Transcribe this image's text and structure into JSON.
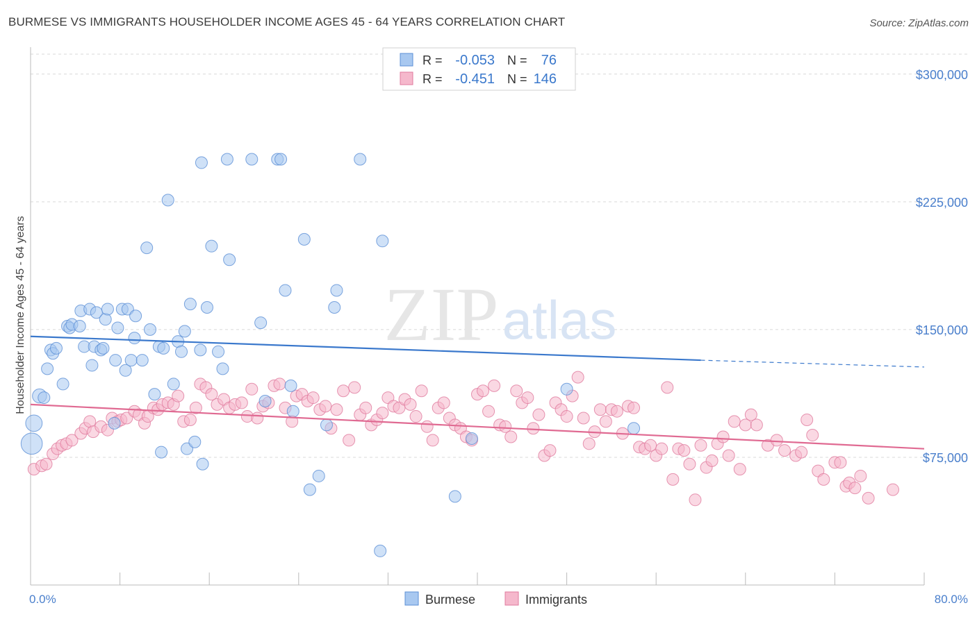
{
  "title": "BURMESE VS IMMIGRANTS HOUSEHOLDER INCOME AGES 45 - 64 YEARS CORRELATION CHART",
  "source": "Source: ZipAtlas.com",
  "watermark": {
    "zip": "ZIP",
    "atlas": "atlas"
  },
  "colors": {
    "burmese_fill": "#a8c8f0",
    "burmese_stroke": "#5b8fd6",
    "burmese_line": "#3a78cc",
    "immigrants_fill": "#f5b8cc",
    "immigrants_stroke": "#e07a9e",
    "immigrants_line": "#e06a92",
    "axis_label": "#4a7fcc",
    "grid": "#d9d9d9"
  },
  "legend_top": [
    {
      "r_label": "R =",
      "r_value": "-0.053",
      "n_label": "N =",
      "n_value": "76"
    },
    {
      "r_label": "R =",
      "r_value": "-0.451",
      "n_label": "N =",
      "n_value": "146"
    }
  ],
  "legend_bottom": [
    "Burmese",
    "Immigrants"
  ],
  "chart_data": {
    "type": "scatter",
    "xlabel": "",
    "ylabel": "Householder Income Ages 45 - 64 years",
    "xlim": [
      0,
      80
    ],
    "ylim": [
      0,
      315000
    ],
    "x_tick_labels": [
      "0.0%",
      "80.0%"
    ],
    "y_ticks": [
      75000,
      150000,
      225000,
      300000
    ],
    "y_tick_labels": [
      "$75,000",
      "$150,000",
      "$225,000",
      "$300,000"
    ],
    "grid": true,
    "series": [
      {
        "name": "Burmese",
        "trend": {
          "x": [
            0,
            60
          ],
          "y": [
            146000,
            132000
          ],
          "dashed_to": [
            80,
            128000
          ]
        },
        "points": [
          [
            0.1,
            83000,
            18
          ],
          [
            0.3,
            95000,
            14
          ],
          [
            0.8,
            111000,
            12
          ],
          [
            1.2,
            110000,
            10
          ],
          [
            1.5,
            127000,
            10
          ],
          [
            1.8,
            138000,
            10
          ],
          [
            2.0,
            136000,
            10
          ],
          [
            2.3,
            139000,
            10
          ],
          [
            2.9,
            118000,
            10
          ],
          [
            3.3,
            152000,
            10
          ],
          [
            3.5,
            151000,
            10
          ],
          [
            3.7,
            153000,
            10
          ],
          [
            4.4,
            152000,
            10
          ],
          [
            4.5,
            161000,
            10
          ],
          [
            4.8,
            140000,
            10
          ],
          [
            5.3,
            162000,
            10
          ],
          [
            5.5,
            129000,
            10
          ],
          [
            5.7,
            140000,
            10
          ],
          [
            5.9,
            160000,
            10
          ],
          [
            6.3,
            138000,
            10
          ],
          [
            6.5,
            139000,
            10
          ],
          [
            6.7,
            156000,
            10
          ],
          [
            6.9,
            162000,
            10
          ],
          [
            7.5,
            95000,
            10
          ],
          [
            7.6,
            132000,
            10
          ],
          [
            7.8,
            151000,
            10
          ],
          [
            8.2,
            162000,
            10
          ],
          [
            8.5,
            126000,
            10
          ],
          [
            8.7,
            162000,
            10
          ],
          [
            9.0,
            132000,
            10
          ],
          [
            9.3,
            145000,
            10
          ],
          [
            9.4,
            158000,
            10
          ],
          [
            10.0,
            132000,
            10
          ],
          [
            10.4,
            198000,
            10
          ],
          [
            10.7,
            150000,
            10
          ],
          [
            11.1,
            112000,
            10
          ],
          [
            11.5,
            140000,
            10
          ],
          [
            11.7,
            78000,
            10
          ],
          [
            11.9,
            139000,
            10
          ],
          [
            12.3,
            226000,
            10
          ],
          [
            12.8,
            118000,
            10
          ],
          [
            13.2,
            143000,
            10
          ],
          [
            13.5,
            137000,
            10
          ],
          [
            13.8,
            149000,
            10
          ],
          [
            14.0,
            80000,
            10
          ],
          [
            14.3,
            165000,
            10
          ],
          [
            14.7,
            84000,
            10
          ],
          [
            15.2,
            138000,
            10
          ],
          [
            15.3,
            248000,
            10
          ],
          [
            15.4,
            71000,
            10
          ],
          [
            15.8,
            163000,
            10
          ],
          [
            16.2,
            199000,
            10
          ],
          [
            16.8,
            137000,
            10
          ],
          [
            17.2,
            127000,
            10
          ],
          [
            17.6,
            250000,
            10
          ],
          [
            17.8,
            191000,
            10
          ],
          [
            19.8,
            250000,
            10
          ],
          [
            20.6,
            154000,
            10
          ],
          [
            21.0,
            108000,
            10
          ],
          [
            22.1,
            250000,
            10
          ],
          [
            22.4,
            250000,
            10
          ],
          [
            22.8,
            173000,
            10
          ],
          [
            23.3,
            117000,
            10
          ],
          [
            23.5,
            102000,
            10
          ],
          [
            24.5,
            203000,
            10
          ],
          [
            25.0,
            56000,
            10
          ],
          [
            25.8,
            64000,
            10
          ],
          [
            26.5,
            94000,
            10
          ],
          [
            27.2,
            163000,
            10
          ],
          [
            27.4,
            173000,
            10
          ],
          [
            29.5,
            250000,
            10
          ],
          [
            31.5,
            202000,
            10
          ],
          [
            31.3,
            20000,
            10
          ],
          [
            38.0,
            52000,
            10
          ],
          [
            39.5,
            86000,
            10
          ],
          [
            48.0,
            115000,
            10
          ],
          [
            54.0,
            92000,
            10
          ]
        ]
      },
      {
        "name": "Immigrants",
        "trend": {
          "x": [
            0,
            80
          ],
          "y": [
            106000,
            80000
          ]
        },
        "points": [
          [
            0.3,
            68000,
            10
          ],
          [
            1.0,
            70000,
            10
          ],
          [
            1.4,
            71000,
            10
          ],
          [
            2.0,
            77000,
            10
          ],
          [
            2.4,
            80000,
            10
          ],
          [
            2.8,
            82000,
            10
          ],
          [
            3.2,
            83000,
            10
          ],
          [
            3.7,
            85000,
            10
          ],
          [
            4.5,
            89000,
            10
          ],
          [
            4.9,
            92000,
            10
          ],
          [
            5.3,
            96000,
            10
          ],
          [
            5.6,
            90000,
            10
          ],
          [
            6.3,
            93000,
            10
          ],
          [
            6.9,
            91000,
            10
          ],
          [
            7.3,
            98000,
            10
          ],
          [
            7.8,
            96000,
            10
          ],
          [
            8.1,
            97000,
            10
          ],
          [
            8.6,
            98000,
            10
          ],
          [
            9.3,
            102000,
            10
          ],
          [
            9.7,
            100000,
            10
          ],
          [
            10.2,
            95000,
            10
          ],
          [
            10.5,
            99000,
            10
          ],
          [
            11.0,
            104000,
            10
          ],
          [
            11.4,
            103000,
            10
          ],
          [
            11.8,
            106000,
            10
          ],
          [
            12.3,
            107000,
            10
          ],
          [
            12.8,
            106000,
            10
          ],
          [
            13.2,
            111000,
            10
          ],
          [
            13.7,
            96000,
            10
          ],
          [
            14.3,
            97000,
            10
          ],
          [
            14.8,
            104000,
            10
          ],
          [
            15.2,
            118000,
            10
          ],
          [
            15.7,
            116000,
            10
          ],
          [
            16.2,
            112000,
            10
          ],
          [
            16.7,
            106000,
            10
          ],
          [
            17.3,
            109000,
            10
          ],
          [
            17.8,
            104000,
            10
          ],
          [
            18.3,
            106000,
            10
          ],
          [
            18.9,
            107000,
            10
          ],
          [
            19.4,
            99000,
            10
          ],
          [
            19.8,
            115000,
            10
          ],
          [
            20.3,
            98000,
            10
          ],
          [
            20.8,
            105000,
            10
          ],
          [
            21.3,
            107000,
            10
          ],
          [
            21.8,
            117000,
            10
          ],
          [
            22.3,
            118000,
            10
          ],
          [
            22.8,
            104000,
            10
          ],
          [
            23.4,
            96000,
            10
          ],
          [
            23.8,
            111000,
            10
          ],
          [
            24.3,
            112000,
            10
          ],
          [
            24.8,
            108000,
            10
          ],
          [
            25.3,
            110000,
            10
          ],
          [
            25.9,
            103000,
            10
          ],
          [
            26.4,
            105000,
            10
          ],
          [
            26.9,
            92000,
            10
          ],
          [
            27.4,
            103000,
            10
          ],
          [
            28.0,
            114000,
            10
          ],
          [
            28.5,
            85000,
            10
          ],
          [
            29.0,
            116000,
            10
          ],
          [
            29.5,
            100000,
            10
          ],
          [
            30.0,
            104000,
            10
          ],
          [
            30.5,
            94000,
            10
          ],
          [
            31.0,
            97000,
            10
          ],
          [
            31.5,
            101000,
            10
          ],
          [
            32.0,
            110000,
            10
          ],
          [
            32.5,
            105000,
            10
          ],
          [
            33.0,
            104000,
            10
          ],
          [
            33.5,
            109000,
            10
          ],
          [
            34.0,
            106000,
            10
          ],
          [
            34.5,
            99000,
            10
          ],
          [
            35.0,
            114000,
            10
          ],
          [
            35.5,
            93000,
            10
          ],
          [
            36.0,
            85000,
            10
          ],
          [
            36.5,
            104000,
            10
          ],
          [
            37.0,
            107000,
            10
          ],
          [
            37.5,
            98000,
            10
          ],
          [
            38.0,
            94000,
            10
          ],
          [
            38.5,
            92000,
            10
          ],
          [
            39.0,
            87000,
            10
          ],
          [
            39.5,
            85000,
            10
          ],
          [
            40.0,
            112000,
            10
          ],
          [
            40.5,
            114000,
            10
          ],
          [
            41.0,
            102000,
            10
          ],
          [
            41.5,
            117000,
            10
          ],
          [
            42.0,
            94000,
            10
          ],
          [
            42.5,
            93000,
            10
          ],
          [
            43.0,
            87000,
            10
          ],
          [
            43.5,
            114000,
            10
          ],
          [
            44.0,
            107000,
            10
          ],
          [
            44.5,
            110000,
            10
          ],
          [
            45.0,
            92000,
            10
          ],
          [
            45.5,
            100000,
            10
          ],
          [
            46.0,
            76000,
            10
          ],
          [
            46.5,
            79000,
            10
          ],
          [
            47.0,
            107000,
            10
          ],
          [
            47.5,
            103000,
            10
          ],
          [
            48.0,
            99000,
            10
          ],
          [
            48.5,
            111000,
            10
          ],
          [
            49.0,
            122000,
            10
          ],
          [
            49.5,
            98000,
            10
          ],
          [
            50.0,
            83000,
            10
          ],
          [
            50.5,
            90000,
            10
          ],
          [
            51.0,
            103000,
            10
          ],
          [
            51.5,
            96000,
            10
          ],
          [
            52.0,
            103000,
            10
          ],
          [
            52.5,
            102000,
            10
          ],
          [
            53.0,
            89000,
            10
          ],
          [
            53.5,
            105000,
            10
          ],
          [
            54.0,
            104000,
            10
          ],
          [
            54.5,
            81000,
            10
          ],
          [
            55.0,
            80000,
            10
          ],
          [
            55.5,
            82000,
            10
          ],
          [
            56.0,
            76000,
            10
          ],
          [
            56.5,
            80000,
            10
          ],
          [
            57.0,
            116000,
            10
          ],
          [
            57.5,
            62000,
            10
          ],
          [
            58.0,
            80000,
            10
          ],
          [
            58.5,
            79000,
            10
          ],
          [
            59.0,
            71000,
            10
          ],
          [
            59.5,
            50000,
            10
          ],
          [
            60.0,
            82000,
            10
          ],
          [
            60.5,
            69000,
            10
          ],
          [
            61.0,
            73000,
            10
          ],
          [
            61.5,
            83000,
            10
          ],
          [
            62.0,
            87000,
            10
          ],
          [
            62.5,
            76000,
            10
          ],
          [
            63.0,
            96000,
            10
          ],
          [
            63.5,
            68000,
            10
          ],
          [
            64.0,
            94000,
            10
          ],
          [
            64.5,
            100000,
            10
          ],
          [
            65.0,
            94000,
            10
          ],
          [
            66.0,
            82000,
            10
          ],
          [
            66.8,
            85000,
            10
          ],
          [
            67.5,
            79000,
            10
          ],
          [
            68.5,
            76000,
            10
          ],
          [
            69.0,
            78000,
            10
          ],
          [
            69.5,
            97000,
            10
          ],
          [
            70.0,
            88000,
            10
          ],
          [
            70.5,
            67000,
            10
          ],
          [
            71.0,
            62000,
            10
          ],
          [
            72.0,
            72000,
            10
          ],
          [
            72.5,
            72000,
            10
          ],
          [
            73.0,
            58000,
            10
          ],
          [
            73.3,
            60000,
            10
          ],
          [
            73.8,
            57000,
            10
          ],
          [
            74.3,
            64000,
            10
          ],
          [
            75.0,
            51000,
            10
          ],
          [
            77.2,
            56000,
            10
          ]
        ]
      }
    ]
  }
}
